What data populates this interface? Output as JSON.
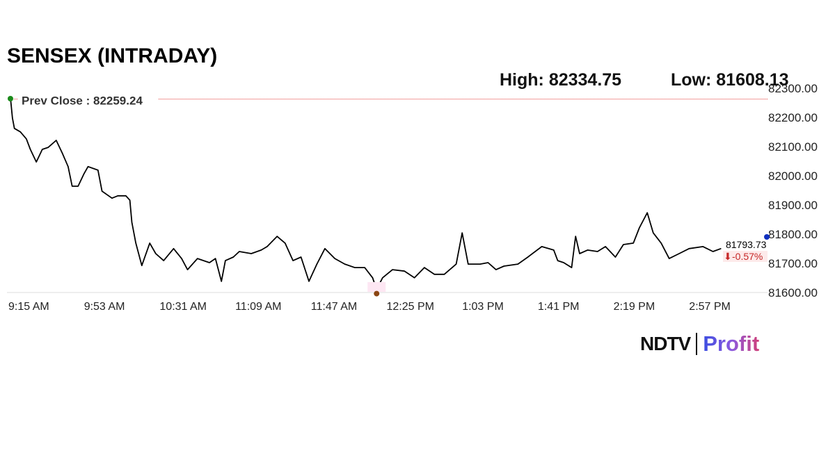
{
  "title": "SENSEX (INTRADAY)",
  "high_label": "High: 82334.75",
  "low_label": "Low: 81608.13",
  "logo": {
    "brand": "NDTV",
    "product": "Profit"
  },
  "chart_data": {
    "type": "line",
    "title": "SENSEX (INTRADAY)",
    "ylim": [
      81600,
      82300
    ],
    "y_ticks": [
      "81600.00",
      "81700.00",
      "81800.00",
      "81900.00",
      "82000.00",
      "82100.00",
      "82200.00",
      "82300.00"
    ],
    "x_ticks": [
      "9:15 AM",
      "9:53 AM",
      "10:31 AM",
      "11:09 AM",
      "11:47 AM",
      "12:25 PM",
      "1:03 PM",
      "1:41 PM",
      "2:19 PM",
      "2:57 PM"
    ],
    "prev_close": {
      "label": "Prev Close : 82259.24",
      "value": 82259.24,
      "color": "#e53935"
    },
    "last": {
      "value_label": "81793.73",
      "change_label": "-0.57%",
      "color": "#c62828"
    },
    "line_color": "#000000",
    "x": [
      "9:15",
      "9:16",
      "9:17",
      "9:20",
      "9:23",
      "9:25",
      "9:28",
      "9:31",
      "9:34",
      "9:38",
      "9:41",
      "9:44",
      "9:46",
      "9:49",
      "9:52",
      "9:54",
      "9:59",
      "10:01",
      "10:06",
      "10:09",
      "10:13",
      "10:15",
      "10:16",
      "10:18",
      "10:21",
      "10:25",
      "10:28",
      "10:32",
      "10:37",
      "10:41",
      "10:44",
      "10:49",
      "10:55",
      "10:58",
      "11:01",
      "11:03",
      "11:07",
      "11:10",
      "11:16",
      "11:21",
      "11:24",
      "11:29",
      "11:33",
      "11:37",
      "11:41",
      "11:45",
      "11:49",
      "11:53",
      "11:58",
      "12:03",
      "12:08",
      "12:13",
      "12:17",
      "12:19",
      "12:22",
      "12:27",
      "12:33",
      "12:38",
      "12:43",
      "12:48",
      "12:53",
      "12:59",
      "13:02",
      "13:05",
      "13:11",
      "13:15",
      "13:19",
      "13:23",
      "13:30",
      "13:35",
      "13:42",
      "13:48",
      "13:50",
      "13:53",
      "13:57",
      "13:59",
      "14:01",
      "14:05",
      "14:10",
      "14:14",
      "14:19",
      "14:23",
      "14:28",
      "14:31",
      "14:35",
      "14:38",
      "14:42",
      "14:46",
      "14:51",
      "14:56",
      "15:03",
      "15:08",
      "15:12"
    ],
    "y": [
      82265,
      82195,
      82160,
      82148,
      82124,
      82088,
      82045,
      82088,
      82095,
      82119,
      82076,
      82029,
      81962,
      81962,
      82005,
      82029,
      82017,
      81945,
      81921,
      81929,
      81929,
      81914,
      81838,
      81767,
      81690,
      81767,
      81731,
      81707,
      81748,
      81714,
      81676,
      81714,
      81700,
      81714,
      81636,
      81707,
      81719,
      81738,
      81731,
      81743,
      81755,
      81790,
      81767,
      81707,
      81719,
      81636,
      81695,
      81748,
      81714,
      81695,
      81683,
      81683,
      81648,
      81608.13,
      81648,
      81676,
      81671,
      81648,
      81683,
      81660,
      81660,
      81695,
      81802,
      81695,
      81695,
      81700,
      81676,
      81688,
      81695,
      81719,
      81755,
      81743,
      81707,
      81700,
      81683,
      81790,
      81731,
      81743,
      81738,
      81755,
      81719,
      81762,
      81767,
      81819,
      81871,
      81802,
      81767,
      81714,
      81731,
      81748,
      81755,
      81738,
      81748
    ]
  }
}
